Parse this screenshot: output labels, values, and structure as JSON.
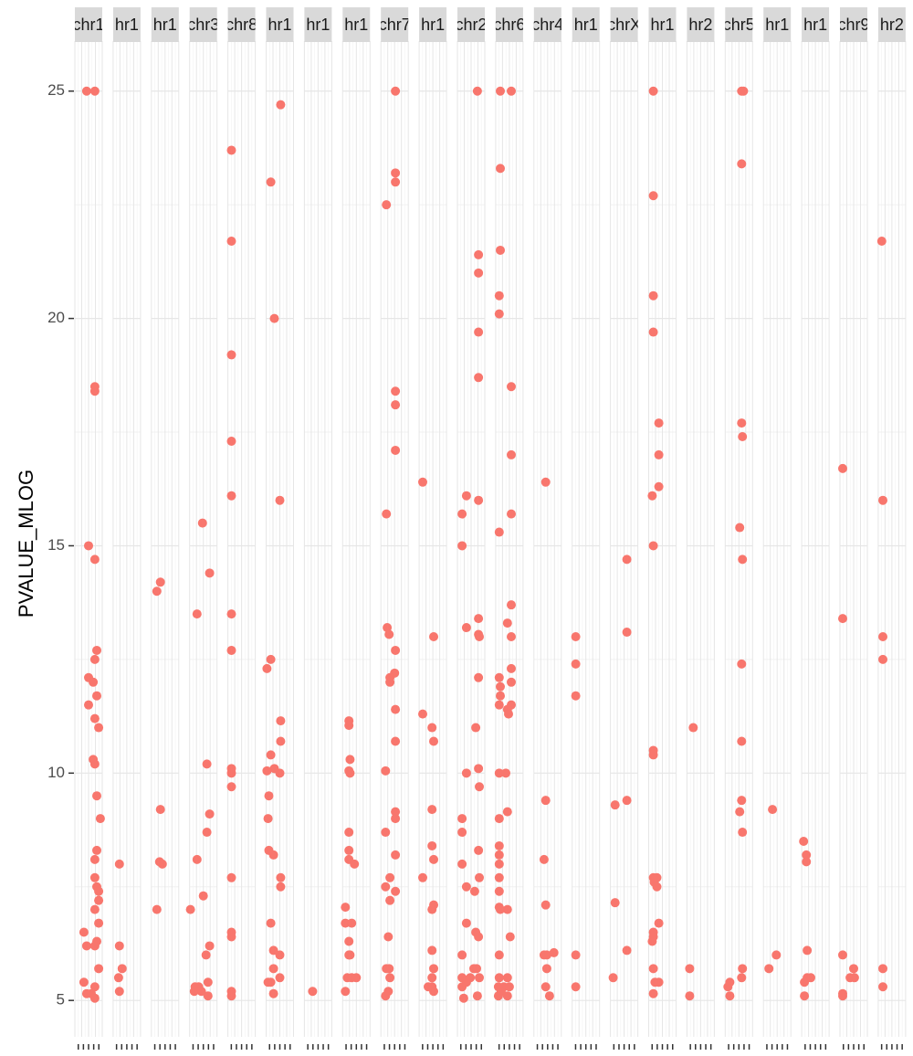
{
  "chart_data": {
    "type": "faceted-scatter",
    "y_label": "PVALUE_MLOG",
    "color": "#F8766D",
    "ylim": [
      4.2,
      26.1
    ],
    "yticks": [
      5,
      10,
      15,
      20,
      25
    ],
    "xlim": [
      0,
      1
    ],
    "grid": true,
    "facets": [
      {
        "label": "chr1",
        "x": [
          0.43,
          0.73,
          0.73,
          0.73,
          0.5,
          0.73,
          0.8,
          0.73,
          0.5,
          0.67,
          0.5,
          0.8,
          0.73,
          0.87,
          0.67,
          0.73,
          0.8,
          0.93,
          0.8,
          0.73,
          0.73,
          0.8,
          0.87,
          0.87,
          0.73,
          0.87,
          0.33,
          0.8,
          0.43,
          0.73,
          0.87,
          0.33,
          0.73,
          0.43,
          0.6,
          0.73
        ],
        "y": [
          25,
          25,
          18.5,
          18.4,
          15.0,
          14.7,
          12.7,
          12.5,
          12.1,
          12.0,
          11.5,
          11.7,
          11.2,
          11.0,
          10.3,
          10.2,
          9.5,
          9.0,
          8.3,
          8.1,
          7.7,
          7.5,
          7.4,
          7.2,
          7.0,
          6.7,
          6.5,
          6.3,
          6.2,
          6.2,
          5.7,
          5.4,
          5.3,
          5.15,
          5.15,
          5.05
        ]
      },
      {
        "label": "hr1",
        "x": [
          0.23,
          0.23,
          0.33,
          0.2,
          0.23
        ],
        "y": [
          8.0,
          6.2,
          5.7,
          5.5,
          5.2
        ]
      },
      {
        "label": "hr1",
        "x": [
          0.33,
          0.2,
          0.33,
          0.3,
          0.4,
          0.2
        ],
        "y": [
          14.2,
          14.0,
          9.2,
          8.05,
          8.0,
          7.0
        ]
      },
      {
        "label": "chr3",
        "x": [
          0.47,
          0.73,
          0.27,
          0.63,
          0.73,
          0.63,
          0.27,
          0.5,
          0.03,
          0.73,
          0.6,
          0.67,
          0.2,
          0.33,
          0.17,
          0.43,
          0.67
        ],
        "y": [
          15.5,
          14.4,
          13.5,
          10.2,
          9.1,
          8.7,
          8.1,
          7.3,
          7.0,
          6.2,
          6.0,
          5.4,
          5.3,
          5.3,
          5.2,
          5.2,
          5.1
        ]
      },
      {
        "label": "chr8",
        "x": [
          0.13,
          0.13,
          0.13,
          0.13,
          0.13,
          0.13,
          0.13,
          0.13,
          0.13,
          0.13,
          0.13,
          0.13,
          0.13,
          0.13,
          0.13
        ],
        "y": [
          23.7,
          21.7,
          19.2,
          17.3,
          16.1,
          13.5,
          12.7,
          10.1,
          10.0,
          9.7,
          7.7,
          6.5,
          6.4,
          5.2,
          5.1
        ]
      },
      {
        "label": "hr1",
        "x": [
          0.53,
          0.17,
          0.3,
          0.5,
          0.17,
          0.03,
          0.53,
          0.53,
          0.17,
          0.3,
          0.5,
          0.03,
          0.1,
          0.07,
          0.1,
          0.27,
          0.53,
          0.53,
          0.17,
          0.27,
          0.5,
          0.27,
          0.5,
          0.07,
          0.17,
          0.27
        ],
        "y": [
          24.7,
          23.0,
          20.0,
          16.0,
          12.5,
          12.3,
          11.15,
          10.7,
          10.4,
          10.1,
          10.0,
          10.05,
          9.5,
          9.0,
          8.3,
          8.2,
          7.7,
          7.5,
          6.7,
          6.1,
          6.0,
          5.7,
          5.5,
          5.4,
          5.4,
          5.15
        ]
      },
      {
        "label": "hr1",
        "x": [
          0.3
        ],
        "y": [
          5.2
        ]
      },
      {
        "label": "hr1",
        "x": [
          0.23,
          0.23,
          0.27,
          0.23,
          0.27,
          0.23,
          0.23,
          0.23,
          0.43,
          0.1,
          0.1,
          0.33,
          0.23,
          0.23,
          0.27,
          0.17,
          0.33,
          0.5,
          0.1
        ],
        "y": [
          11.15,
          11.05,
          10.3,
          10.05,
          10.0,
          8.7,
          8.3,
          8.1,
          8.0,
          7.05,
          6.7,
          6.7,
          6.3,
          6.0,
          6.0,
          5.5,
          5.5,
          5.5,
          5.2
        ]
      },
      {
        "label": "chr7",
        "x": [
          0.53,
          0.53,
          0.53,
          0.2,
          0.53,
          0.53,
          0.53,
          0.2,
          0.23,
          0.3,
          0.53,
          0.5,
          0.33,
          0.33,
          0.53,
          0.53,
          0.17,
          0.53,
          0.53,
          0.17,
          0.53,
          0.33,
          0.17,
          0.53,
          0.33,
          0.27,
          0.2,
          0.3,
          0.33,
          0.27,
          0.17
        ],
        "y": [
          25,
          23.2,
          23.0,
          22.5,
          18.4,
          18.1,
          17.1,
          15.7,
          13.2,
          13.05,
          12.7,
          12.2,
          12.1,
          12.0,
          11.4,
          10.7,
          10.05,
          9.15,
          9.0,
          8.7,
          8.2,
          7.7,
          7.5,
          7.4,
          7.2,
          6.4,
          5.7,
          5.7,
          5.5,
          5.2,
          5.1
        ]
      },
      {
        "label": "hr1",
        "x": [
          0.13,
          0.53,
          0.13,
          0.47,
          0.53,
          0.47,
          0.47,
          0.53,
          0.13,
          0.53,
          0.47,
          0.47,
          0.53,
          0.47,
          0.33,
          0.47,
          0.53
        ],
        "y": [
          16.4,
          13.0,
          11.3,
          11.0,
          10.7,
          9.2,
          8.4,
          8.1,
          7.7,
          7.1,
          7.0,
          6.1,
          5.7,
          5.5,
          5.3,
          5.3,
          5.2
        ]
      },
      {
        "label": "chr2",
        "x": [
          0.73,
          0.77,
          0.77,
          0.77,
          0.77,
          0.33,
          0.77,
          0.17,
          0.17,
          0.77,
          0.33,
          0.77,
          0.8,
          0.77,
          0.67,
          0.77,
          0.33,
          0.8,
          0.17,
          0.17,
          0.77,
          0.17,
          0.8,
          0.33,
          0.63,
          0.33,
          0.67,
          0.77,
          0.17,
          0.6,
          0.7,
          0.17,
          0.47,
          0.33,
          0.8,
          0.17,
          0.73,
          0.23
        ],
        "y": [
          25,
          21.4,
          21.0,
          19.7,
          18.7,
          16.1,
          16.0,
          15.7,
          15.0,
          13.4,
          13.2,
          13.05,
          13.0,
          12.1,
          11.0,
          10.1,
          10.0,
          9.7,
          9.0,
          8.7,
          8.3,
          8.0,
          7.7,
          7.5,
          7.4,
          6.7,
          6.5,
          6.4,
          6.0,
          5.7,
          5.7,
          5.5,
          5.5,
          5.4,
          5.5,
          5.3,
          5.1,
          5.05
        ]
      },
      {
        "label": "chr6",
        "x": [
          0.17,
          0.57,
          0.17,
          0.17,
          0.13,
          0.13,
          0.57,
          0.57,
          0.57,
          0.13,
          0.57,
          0.43,
          0.57,
          0.57,
          0.13,
          0.57,
          0.17,
          0.17,
          0.13,
          0.57,
          0.43,
          0.47,
          0.13,
          0.37,
          0.43,
          0.13,
          0.13,
          0.13,
          0.13,
          0.13,
          0.13,
          0.13,
          0.43,
          0.17,
          0.53,
          0.13,
          0.13,
          0.43,
          0.1,
          0.3,
          0.5,
          0.2,
          0.1,
          0.43
        ],
        "y": [
          25,
          25,
          23.3,
          21.5,
          20.5,
          20.1,
          18.5,
          17.0,
          15.7,
          15.3,
          13.7,
          13.3,
          13.0,
          12.3,
          12.1,
          12.0,
          11.9,
          11.7,
          11.5,
          11.5,
          11.4,
          11.3,
          10.0,
          10.0,
          9.15,
          9.0,
          8.4,
          8.2,
          8.0,
          7.7,
          7.4,
          7.05,
          7.0,
          7.0,
          6.4,
          6.0,
          5.5,
          5.5,
          5.3,
          5.3,
          5.3,
          5.2,
          5.1,
          5.1
        ]
      },
      {
        "label": "chr4",
        "x": [
          0.43,
          0.43,
          0.37,
          0.43,
          0.73,
          0.37,
          0.47,
          0.47,
          0.43,
          0.57
        ],
        "y": [
          16.4,
          9.4,
          8.1,
          7.1,
          6.05,
          6.0,
          6.0,
          5.7,
          5.3,
          5.1
        ]
      },
      {
        "label": "hr1",
        "x": [
          0.13,
          0.13,
          0.13,
          0.13,
          0.13
        ],
        "y": [
          13.0,
          12.4,
          11.7,
          6.0,
          5.3
        ]
      },
      {
        "label": "chrX",
        "x": [
          0.6,
          0.6,
          0.6,
          0.17,
          0.17,
          0.6,
          0.1
        ],
        "y": [
          14.7,
          13.1,
          9.4,
          9.3,
          7.15,
          6.1,
          5.5
        ]
      },
      {
        "label": "hr1",
        "x": [
          0.17,
          0.17,
          0.17,
          0.17,
          0.37,
          0.37,
          0.37,
          0.13,
          0.17,
          0.17,
          0.17,
          0.17,
          0.3,
          0.2,
          0.3,
          0.37,
          0.17,
          0.17,
          0.13,
          0.17,
          0.23,
          0.37,
          0.17
        ],
        "y": [
          25,
          22.7,
          20.5,
          19.7,
          17.7,
          17.0,
          16.3,
          16.1,
          15.0,
          10.5,
          10.4,
          7.7,
          7.7,
          7.6,
          7.5,
          6.7,
          6.5,
          6.4,
          6.3,
          5.7,
          5.4,
          5.4,
          5.15
        ]
      },
      {
        "label": "hr2",
        "x": [
          0.23,
          0.1,
          0.1
        ],
        "y": [
          11.0,
          5.7,
          5.1
        ]
      },
      {
        "label": "chr5",
        "x": [
          0.6,
          0.67,
          0.6,
          0.6,
          0.63,
          0.53,
          0.63,
          0.6,
          0.6,
          0.6,
          0.53,
          0.63,
          0.63,
          0.6,
          0.17,
          0.1,
          0.17
        ],
        "y": [
          25,
          25,
          23.4,
          17.7,
          17.4,
          15.4,
          14.7,
          12.4,
          10.7,
          9.4,
          9.15,
          8.7,
          5.7,
          5.5,
          5.4,
          5.3,
          5.1
        ]
      },
      {
        "label": "hr1",
        "x": [
          0.33,
          0.47,
          0.2
        ],
        "y": [
          9.2,
          6.0,
          5.7
        ]
      },
      {
        "label": "hr1",
        "x": [
          0.07,
          0.17,
          0.17,
          0.2,
          0.2,
          0.33,
          0.1,
          0.1
        ],
        "y": [
          8.5,
          8.2,
          8.05,
          6.1,
          5.5,
          5.5,
          5.4,
          5.1
        ]
      },
      {
        "label": "chr9",
        "x": [
          0.1,
          0.1,
          0.1,
          0.5,
          0.37,
          0.53,
          0.1,
          0.1
        ],
        "y": [
          16.7,
          13.4,
          6.0,
          5.7,
          5.5,
          5.5,
          5.15,
          5.1
        ]
      },
      {
        "label": "hr2",
        "x": [
          0.13,
          0.17,
          0.17,
          0.17,
          0.17,
          0.17
        ],
        "y": [
          21.7,
          16.0,
          13.0,
          12.5,
          5.7,
          5.3
        ]
      }
    ]
  }
}
